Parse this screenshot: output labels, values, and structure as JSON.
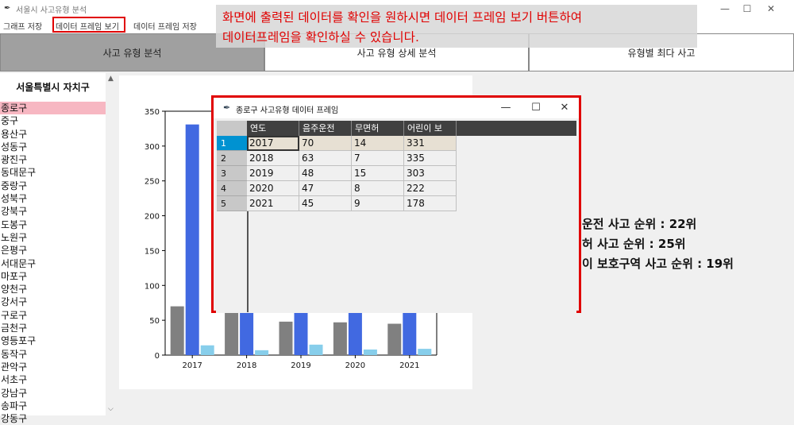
{
  "window": {
    "title": "서울시 사고유형 분석",
    "icon": "feather-icon"
  },
  "menu": {
    "items": [
      "그래프 저장",
      "데이터 프레임 보기",
      "데이터 프레임 저장"
    ]
  },
  "annotation": {
    "text": "화면에 출력된 데이터를 확인을 원하시면 데이터 프레임 보기 버튼하여\n데이터프레임을 확인하실 수 있습니다."
  },
  "tabs": [
    "사고 유형 분석",
    "사고 유형 상세 분석",
    "유형별 최다 사고"
  ],
  "sidebar": {
    "title": "서울특별시 자치구",
    "selected": "종로구",
    "districts": [
      "종로구",
      "중구",
      "용산구",
      "성동구",
      "광진구",
      "동대문구",
      "중랑구",
      "성북구",
      "강북구",
      "도봉구",
      "노원구",
      "은평구",
      "서대문구",
      "마포구",
      "양천구",
      "강서구",
      "구로구",
      "금천구",
      "영등포구",
      "동작구",
      "관악구",
      "서초구",
      "강남구",
      "송파구",
      "강동구"
    ]
  },
  "chart_data": {
    "type": "bar",
    "categories": [
      "2017",
      "2018",
      "2019",
      "2020",
      "2021"
    ],
    "series": [
      {
        "values": [
          70,
          63,
          48,
          47,
          45
        ],
        "color": "#808080"
      },
      {
        "values": [
          331,
          335,
          303,
          222,
          178
        ],
        "color": "#4169e1"
      },
      {
        "values": [
          14,
          7,
          15,
          8,
          9
        ],
        "color": "#87ceeb"
      }
    ],
    "yticks": [
      0,
      50,
      100,
      150,
      200,
      250,
      300,
      350
    ],
    "ylim": [
      0,
      350
    ],
    "grid": false
  },
  "rankings": [
    "운전 사고 순위 : 22위",
    "허 사고 순위 : 25위",
    "이 보호구역 사고 순위 : 19위"
  ],
  "dialog": {
    "title": "종로구 사고유형 데이터 프레임",
    "icon": "feather-icon",
    "columns": [
      "연도",
      "음주운전",
      "무면허",
      "어린이 보"
    ],
    "index": [
      "1",
      "2",
      "3",
      "4",
      "5"
    ],
    "rows": [
      [
        "2017",
        "70",
        "14",
        "331"
      ],
      [
        "2018",
        "63",
        "7",
        "335"
      ],
      [
        "2019",
        "48",
        "15",
        "303"
      ],
      [
        "2020",
        "47",
        "8",
        "222"
      ],
      [
        "2021",
        "45",
        "9",
        "178"
      ]
    ]
  },
  "colors": {
    "accent_red": "#e00000",
    "selected_district": "#f7b7c2",
    "index_selected": "#0092d1"
  }
}
